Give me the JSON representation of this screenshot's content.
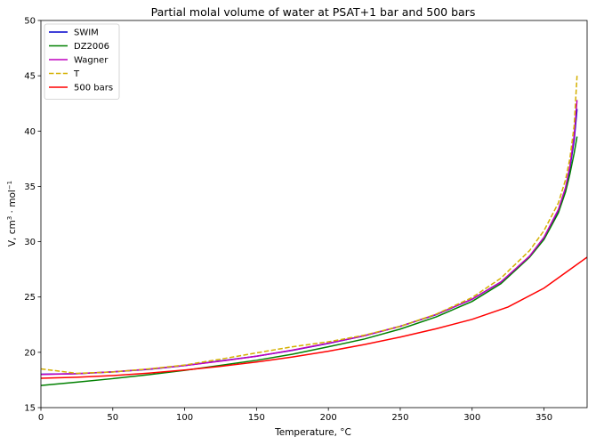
{
  "chart_data": {
    "type": "line",
    "title": "Partial molal volume of water at PSAT+1 bar and 500 bars",
    "xlabel": "Temperature, °C",
    "ylabel_parts": [
      "V, cm",
      "3",
      " · mol",
      "−1"
    ],
    "xlim": [
      0,
      380
    ],
    "ylim": [
      15,
      50
    ],
    "xticks": [
      0,
      50,
      100,
      150,
      200,
      250,
      300,
      350
    ],
    "yticks": [
      15,
      20,
      25,
      30,
      35,
      40,
      45,
      50
    ],
    "grid": false,
    "legend_position": "top-left",
    "series": [
      {
        "name": "SWIM",
        "color": "#0000cc",
        "dash": "solid",
        "points": [
          [
            0,
            18.02
          ],
          [
            25,
            18.07
          ],
          [
            50,
            18.23
          ],
          [
            75,
            18.46
          ],
          [
            100,
            18.8
          ],
          [
            125,
            19.22
          ],
          [
            150,
            19.65
          ],
          [
            175,
            20.18
          ],
          [
            200,
            20.8
          ],
          [
            225,
            21.5
          ],
          [
            250,
            22.35
          ],
          [
            275,
            23.4
          ],
          [
            300,
            24.8
          ],
          [
            320,
            26.35
          ],
          [
            340,
            28.65
          ],
          [
            350,
            30.3
          ],
          [
            360,
            32.8
          ],
          [
            365,
            34.8
          ],
          [
            368,
            36.6
          ],
          [
            371,
            39.2
          ],
          [
            373,
            42.0
          ]
        ]
      },
      {
        "name": "DZ2006",
        "color": "#008000",
        "dash": "solid",
        "points": [
          [
            0,
            17.0
          ],
          [
            25,
            17.3
          ],
          [
            50,
            17.62
          ],
          [
            75,
            17.98
          ],
          [
            100,
            18.37
          ],
          [
            125,
            18.82
          ],
          [
            150,
            19.28
          ],
          [
            175,
            19.83
          ],
          [
            200,
            20.5
          ],
          [
            225,
            21.2
          ],
          [
            250,
            22.1
          ],
          [
            275,
            23.2
          ],
          [
            300,
            24.6
          ],
          [
            320,
            26.2
          ],
          [
            340,
            28.6
          ],
          [
            350,
            30.2
          ],
          [
            360,
            32.6
          ],
          [
            365,
            34.5
          ],
          [
            368,
            36.1
          ],
          [
            371,
            38.0
          ],
          [
            373,
            39.5
          ]
        ]
      },
      {
        "name": "Wagner",
        "color": "#bf00bf",
        "dash": "solid",
        "points": [
          [
            0,
            18.0
          ],
          [
            25,
            18.07
          ],
          [
            50,
            18.24
          ],
          [
            75,
            18.48
          ],
          [
            100,
            18.8
          ],
          [
            125,
            19.2
          ],
          [
            150,
            19.65
          ],
          [
            175,
            20.2
          ],
          [
            200,
            20.82
          ],
          [
            225,
            21.5
          ],
          [
            250,
            22.35
          ],
          [
            275,
            23.42
          ],
          [
            300,
            24.8
          ],
          [
            320,
            26.35
          ],
          [
            340,
            28.7
          ],
          [
            350,
            30.4
          ],
          [
            360,
            32.9
          ],
          [
            365,
            34.9
          ],
          [
            368,
            36.8
          ],
          [
            371,
            39.6
          ],
          [
            373,
            42.8
          ]
        ]
      },
      {
        "name": "T",
        "color": "#d4b000",
        "dash": "dashed",
        "points": [
          [
            0,
            18.5
          ],
          [
            25,
            18.1
          ],
          [
            50,
            18.22
          ],
          [
            75,
            18.5
          ],
          [
            100,
            18.85
          ],
          [
            125,
            19.38
          ],
          [
            150,
            19.95
          ],
          [
            175,
            20.5
          ],
          [
            200,
            20.95
          ],
          [
            225,
            21.55
          ],
          [
            250,
            22.35
          ],
          [
            275,
            23.45
          ],
          [
            300,
            24.95
          ],
          [
            320,
            26.7
          ],
          [
            340,
            29.2
          ],
          [
            350,
            31.0
          ],
          [
            360,
            33.5
          ],
          [
            365,
            35.6
          ],
          [
            368,
            37.5
          ],
          [
            371,
            40.5
          ],
          [
            373,
            45.0
          ]
        ]
      },
      {
        "name": "500 bars",
        "color": "#ff0000",
        "dash": "solid",
        "points": [
          [
            0,
            17.65
          ],
          [
            25,
            17.75
          ],
          [
            50,
            17.9
          ],
          [
            75,
            18.12
          ],
          [
            100,
            18.4
          ],
          [
            125,
            18.73
          ],
          [
            150,
            19.12
          ],
          [
            175,
            19.58
          ],
          [
            200,
            20.1
          ],
          [
            225,
            20.7
          ],
          [
            250,
            21.38
          ],
          [
            275,
            22.13
          ],
          [
            300,
            22.98
          ],
          [
            325,
            24.1
          ],
          [
            350,
            25.8
          ],
          [
            365,
            27.2
          ],
          [
            380,
            28.6
          ]
        ]
      }
    ]
  }
}
